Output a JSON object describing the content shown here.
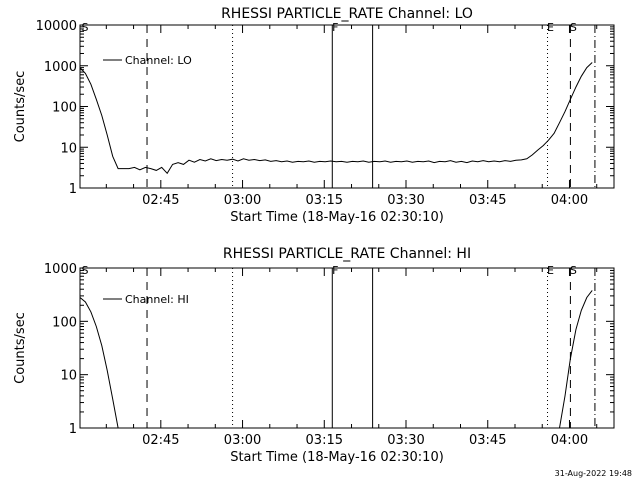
{
  "chart_data": [
    {
      "type": "line",
      "title": "RHESSI PARTICLE_RATE Channel: LO",
      "xlabel": "Start Time (18-May-16 02:30:10)",
      "ylabel": "Counts/sec",
      "yscale": "log",
      "ylim": [
        1,
        10000
      ],
      "xlim_minutes": [
        0,
        98
      ],
      "yticks": [
        1,
        10,
        100,
        1000,
        10000
      ],
      "ytick_labels": [
        "1",
        "10",
        "100",
        "1000",
        "10000"
      ],
      "xticks_minutes": [
        14.83,
        29.83,
        44.83,
        59.83,
        74.83,
        89.83
      ],
      "xtick_labels": [
        "02:45",
        "03:00",
        "03:15",
        "03:30",
        "03:45",
        "04:00"
      ],
      "legend": "Channel: LO",
      "series": [
        {
          "name": "Channel: LO",
          "x": [
            0,
            1,
            2,
            3,
            4,
            5,
            6,
            7,
            8,
            9,
            10,
            11,
            12,
            13,
            14,
            15,
            16,
            17,
            18,
            19,
            20,
            21,
            22,
            23,
            24,
            25,
            26,
            27,
            28,
            29,
            30,
            31,
            32,
            33,
            34,
            35,
            36,
            37,
            38,
            39,
            40,
            41,
            42,
            43,
            44,
            45,
            46,
            47,
            48,
            49,
            50,
            51,
            52,
            53,
            54,
            55,
            56,
            57,
            58,
            59,
            60,
            61,
            62,
            63,
            64,
            65,
            66,
            67,
            68,
            69,
            70,
            71,
            72,
            73,
            74,
            75,
            76,
            77,
            78,
            79,
            80,
            81,
            82,
            83,
            84,
            85,
            86,
            87,
            88,
            89,
            90,
            91,
            92,
            93,
            94
          ],
          "y": [
            900,
            650,
            350,
            150,
            60,
            20,
            6,
            3,
            3,
            3,
            3.2,
            2.8,
            3.2,
            3,
            2.7,
            3.2,
            2.3,
            3.8,
            4.2,
            3.8,
            4.8,
            4.3,
            5,
            4.6,
            5.2,
            4.7,
            5,
            4.8,
            5.1,
            4.6,
            5.2,
            4.8,
            5,
            4.7,
            4.9,
            4.5,
            4.7,
            4.4,
            4.6,
            4.3,
            4.5,
            4.4,
            4.6,
            4.3,
            4.5,
            4.4,
            4.6,
            4.4,
            4.5,
            4.3,
            4.5,
            4.4,
            4.6,
            4.3,
            4.5,
            4.4,
            4.6,
            4.3,
            4.5,
            4.4,
            4.6,
            4.3,
            4.5,
            4.4,
            4.6,
            4.2,
            4.5,
            4.4,
            4.7,
            4.3,
            4.5,
            4.2,
            4.6,
            4.4,
            4.7,
            4.4,
            4.6,
            4.4,
            4.7,
            4.5,
            4.8,
            4.9,
            5.2,
            6.5,
            8.5,
            11,
            15,
            22,
            40,
            75,
            150,
            300,
            550,
            900,
            1200
          ]
        }
      ],
      "events": [
        {
          "label": "S",
          "x": 0
        },
        {
          "label": "",
          "x": 12.3
        },
        {
          "label": "",
          "x": 28
        },
        {
          "label": "F",
          "x": 46.3
        },
        {
          "label": "",
          "x": 53.7
        },
        {
          "label": "E",
          "x": 85.8
        },
        {
          "label": "S",
          "x": 90
        },
        {
          "label": "",
          "x": 94.5
        }
      ],
      "event_styles": {
        "S": "dashed",
        "F": "solid",
        "E": "dotted",
        "dashdot": "dash-dot"
      }
    },
    {
      "type": "line",
      "title": "RHESSI PARTICLE_RATE Channel: HI",
      "xlabel": "Start Time (18-May-16 02:30:10)",
      "ylabel": "Counts/sec",
      "yscale": "log",
      "ylim": [
        1,
        1000
      ],
      "xlim_minutes": [
        0,
        98
      ],
      "yticks": [
        1,
        10,
        100,
        1000
      ],
      "ytick_labels": [
        "1",
        "10",
        "100",
        "1000"
      ],
      "xticks_minutes": [
        14.83,
        29.83,
        44.83,
        59.83,
        74.83,
        89.83
      ],
      "xtick_labels": [
        "02:45",
        "03:00",
        "03:15",
        "03:30",
        "03:45",
        "04:00"
      ],
      "legend": "Channel: HI",
      "series": [
        {
          "name": "Channel: HI",
          "x": [
            0,
            1,
            2,
            3,
            4,
            5,
            6,
            7,
            8,
            9,
            88,
            89,
            90,
            91,
            92,
            93,
            94
          ],
          "y": [
            280,
            230,
            150,
            80,
            35,
            12,
            3.5,
            1,
            null,
            null,
            1,
            4,
            20,
            70,
            160,
            280,
            380
          ]
        }
      ],
      "events": [
        {
          "label": "S",
          "x": 0
        },
        {
          "label": "",
          "x": 12.3
        },
        {
          "label": "",
          "x": 28
        },
        {
          "label": "F",
          "x": 46.3
        },
        {
          "label": "",
          "x": 53.7
        },
        {
          "label": "E",
          "x": 85.8
        },
        {
          "label": "S",
          "x": 90
        },
        {
          "label": "",
          "x": 94.5
        }
      ]
    }
  ],
  "footer": {
    "timestamp": "31-Aug-2022 19:48"
  }
}
